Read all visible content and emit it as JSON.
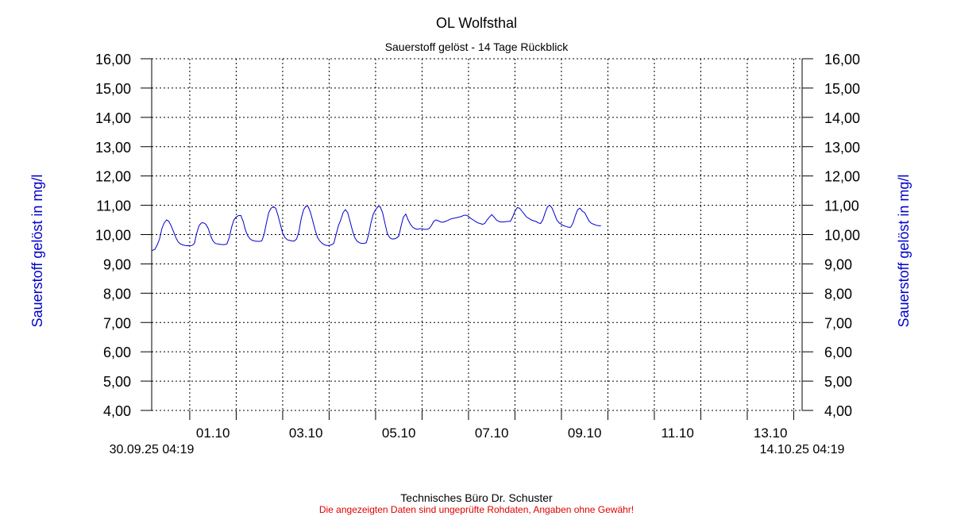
{
  "chart_data": {
    "type": "line",
    "title": "OL Wolfsthal",
    "subtitle": "Sauerstoff gelöst - 14 Tage Rückblick",
    "ylabel": "Sauerstoff gelöst in mg/l",
    "ylabel_right": "Sauerstoff gelöst in mg/l",
    "ylim": [
      4,
      16
    ],
    "y_ticks": [
      "4,00",
      "5,00",
      "6,00",
      "7,00",
      "8,00",
      "9,00",
      "10,00",
      "11,00",
      "12,00",
      "13,00",
      "14,00",
      "15,00",
      "16,00"
    ],
    "y_ticks_right": [
      "4,00",
      "5,00",
      "6,00",
      "7,00",
      "8,00",
      "9,00",
      "10,00",
      "11,00",
      "12,00",
      "13,00",
      "14,00",
      "15,00",
      "16,00"
    ],
    "x_start_label": "30.09.25 04:19",
    "x_end_label": "14.10.25 04:19",
    "x_tick_labels": [
      "01.10",
      "03.10",
      "05.10",
      "07.10",
      "09.10",
      "11.10",
      "13.10"
    ],
    "grid": true,
    "series_color": "#0000cc",
    "series": [
      {
        "x_unit": "days since 30.09.25 00:00",
        "points": [
          [
            0.18,
            9.45
          ],
          [
            0.25,
            9.5
          ],
          [
            0.3,
            9.65
          ],
          [
            0.35,
            9.85
          ],
          [
            0.4,
            10.2
          ],
          [
            0.45,
            10.4
          ],
          [
            0.5,
            10.5
          ],
          [
            0.55,
            10.45
          ],
          [
            0.6,
            10.3
          ],
          [
            0.65,
            10.1
          ],
          [
            0.7,
            9.9
          ],
          [
            0.75,
            9.75
          ],
          [
            0.8,
            9.68
          ],
          [
            0.85,
            9.65
          ],
          [
            0.9,
            9.63
          ],
          [
            0.95,
            9.62
          ],
          [
            1.0,
            9.62
          ],
          [
            1.05,
            9.63
          ],
          [
            1.1,
            9.7
          ],
          [
            1.15,
            10.05
          ],
          [
            1.2,
            10.3
          ],
          [
            1.25,
            10.4
          ],
          [
            1.3,
            10.4
          ],
          [
            1.35,
            10.35
          ],
          [
            1.4,
            10.2
          ],
          [
            1.45,
            9.95
          ],
          [
            1.5,
            9.78
          ],
          [
            1.55,
            9.7
          ],
          [
            1.6,
            9.68
          ],
          [
            1.65,
            9.67
          ],
          [
            1.7,
            9.66
          ],
          [
            1.75,
            9.66
          ],
          [
            1.8,
            9.68
          ],
          [
            1.85,
            9.9
          ],
          [
            1.9,
            10.25
          ],
          [
            1.95,
            10.5
          ],
          [
            2.0,
            10.6
          ],
          [
            2.05,
            10.65
          ],
          [
            2.1,
            10.65
          ],
          [
            2.15,
            10.45
          ],
          [
            2.2,
            10.15
          ],
          [
            2.25,
            9.95
          ],
          [
            2.3,
            9.85
          ],
          [
            2.35,
            9.8
          ],
          [
            2.4,
            9.78
          ],
          [
            2.45,
            9.77
          ],
          [
            2.5,
            9.77
          ],
          [
            2.55,
            9.78
          ],
          [
            2.6,
            10.0
          ],
          [
            2.65,
            10.4
          ],
          [
            2.7,
            10.75
          ],
          [
            2.75,
            10.9
          ],
          [
            2.8,
            10.95
          ],
          [
            2.85,
            10.9
          ],
          [
            2.9,
            10.65
          ],
          [
            2.95,
            10.35
          ],
          [
            3.0,
            10.05
          ],
          [
            3.05,
            9.9
          ],
          [
            3.1,
            9.82
          ],
          [
            3.15,
            9.8
          ],
          [
            3.2,
            9.78
          ],
          [
            3.25,
            9.78
          ],
          [
            3.3,
            9.85
          ],
          [
            3.35,
            10.1
          ],
          [
            3.4,
            10.55
          ],
          [
            3.45,
            10.85
          ],
          [
            3.5,
            10.97
          ],
          [
            3.55,
            10.95
          ],
          [
            3.6,
            10.75
          ],
          [
            3.65,
            10.45
          ],
          [
            3.7,
            10.15
          ],
          [
            3.75,
            9.9
          ],
          [
            3.8,
            9.78
          ],
          [
            3.85,
            9.7
          ],
          [
            3.9,
            9.65
          ],
          [
            3.95,
            9.63
          ],
          [
            4.0,
            9.63
          ],
          [
            4.05,
            9.65
          ],
          [
            4.1,
            9.7
          ],
          [
            4.15,
            10.0
          ],
          [
            4.2,
            10.3
          ],
          [
            4.25,
            10.5
          ],
          [
            4.3,
            10.75
          ],
          [
            4.35,
            10.85
          ],
          [
            4.4,
            10.75
          ],
          [
            4.45,
            10.45
          ],
          [
            4.5,
            10.15
          ],
          [
            4.55,
            9.9
          ],
          [
            4.6,
            9.78
          ],
          [
            4.65,
            9.72
          ],
          [
            4.7,
            9.7
          ],
          [
            4.75,
            9.7
          ],
          [
            4.8,
            9.72
          ],
          [
            4.85,
            10.0
          ],
          [
            4.9,
            10.4
          ],
          [
            4.95,
            10.7
          ],
          [
            5.0,
            10.85
          ],
          [
            5.05,
            10.95
          ],
          [
            5.1,
            10.95
          ],
          [
            5.15,
            10.75
          ],
          [
            5.2,
            10.4
          ],
          [
            5.25,
            10.05
          ],
          [
            5.3,
            9.9
          ],
          [
            5.35,
            9.85
          ],
          [
            5.4,
            9.85
          ],
          [
            5.45,
            9.88
          ],
          [
            5.5,
            9.95
          ],
          [
            5.55,
            10.3
          ],
          [
            5.6,
            10.6
          ],
          [
            5.65,
            10.7
          ],
          [
            5.7,
            10.5
          ],
          [
            5.75,
            10.35
          ],
          [
            5.8,
            10.25
          ],
          [
            5.85,
            10.2
          ],
          [
            5.9,
            10.18
          ],
          [
            5.95,
            10.2
          ],
          [
            6.0,
            10.2
          ],
          [
            6.05,
            10.18
          ],
          [
            6.1,
            10.18
          ],
          [
            6.15,
            10.2
          ],
          [
            6.2,
            10.3
          ],
          [
            6.25,
            10.45
          ],
          [
            6.3,
            10.5
          ],
          [
            6.35,
            10.47
          ],
          [
            6.4,
            10.43
          ],
          [
            6.45,
            10.42
          ],
          [
            6.5,
            10.45
          ],
          [
            6.55,
            10.48
          ],
          [
            6.6,
            10.52
          ],
          [
            6.65,
            10.55
          ],
          [
            6.7,
            10.56
          ],
          [
            6.75,
            10.58
          ],
          [
            6.8,
            10.6
          ],
          [
            6.85,
            10.62
          ],
          [
            6.9,
            10.66
          ],
          [
            6.95,
            10.66
          ],
          [
            7.0,
            10.62
          ],
          [
            7.05,
            10.55
          ],
          [
            7.1,
            10.5
          ],
          [
            7.15,
            10.45
          ],
          [
            7.2,
            10.4
          ],
          [
            7.25,
            10.38
          ],
          [
            7.3,
            10.35
          ],
          [
            7.35,
            10.38
          ],
          [
            7.4,
            10.5
          ],
          [
            7.45,
            10.6
          ],
          [
            7.5,
            10.68
          ],
          [
            7.55,
            10.6
          ],
          [
            7.6,
            10.5
          ],
          [
            7.65,
            10.45
          ],
          [
            7.7,
            10.43
          ],
          [
            7.75,
            10.43
          ],
          [
            7.8,
            10.44
          ],
          [
            7.85,
            10.45
          ],
          [
            7.9,
            10.45
          ],
          [
            7.95,
            10.6
          ],
          [
            8.0,
            10.8
          ],
          [
            8.05,
            10.92
          ],
          [
            8.1,
            10.9
          ],
          [
            8.15,
            10.8
          ],
          [
            8.2,
            10.7
          ],
          [
            8.25,
            10.6
          ],
          [
            8.3,
            10.55
          ],
          [
            8.35,
            10.5
          ],
          [
            8.4,
            10.47
          ],
          [
            8.45,
            10.45
          ],
          [
            8.5,
            10.4
          ],
          [
            8.55,
            10.38
          ],
          [
            8.6,
            10.5
          ],
          [
            8.65,
            10.75
          ],
          [
            8.7,
            10.95
          ],
          [
            8.75,
            11.0
          ],
          [
            8.8,
            10.9
          ],
          [
            8.85,
            10.7
          ],
          [
            8.9,
            10.5
          ],
          [
            8.95,
            10.4
          ],
          [
            9.0,
            10.35
          ],
          [
            9.05,
            10.3
          ],
          [
            9.1,
            10.28
          ],
          [
            9.15,
            10.25
          ],
          [
            9.2,
            10.25
          ],
          [
            9.25,
            10.4
          ],
          [
            9.3,
            10.65
          ],
          [
            9.35,
            10.85
          ],
          [
            9.4,
            10.9
          ],
          [
            9.45,
            10.8
          ],
          [
            9.5,
            10.75
          ],
          [
            9.55,
            10.6
          ],
          [
            9.6,
            10.45
          ],
          [
            9.65,
            10.38
          ],
          [
            9.7,
            10.35
          ],
          [
            9.75,
            10.32
          ],
          [
            9.8,
            10.3
          ],
          [
            9.85,
            10.3
          ]
        ]
      }
    ]
  },
  "footer": {
    "company": "Technisches Büro Dr. Schuster",
    "disclaimer": "Die angezeigten Daten sind ungeprüfte Rohdaten, Angaben ohne Gewähr!"
  }
}
